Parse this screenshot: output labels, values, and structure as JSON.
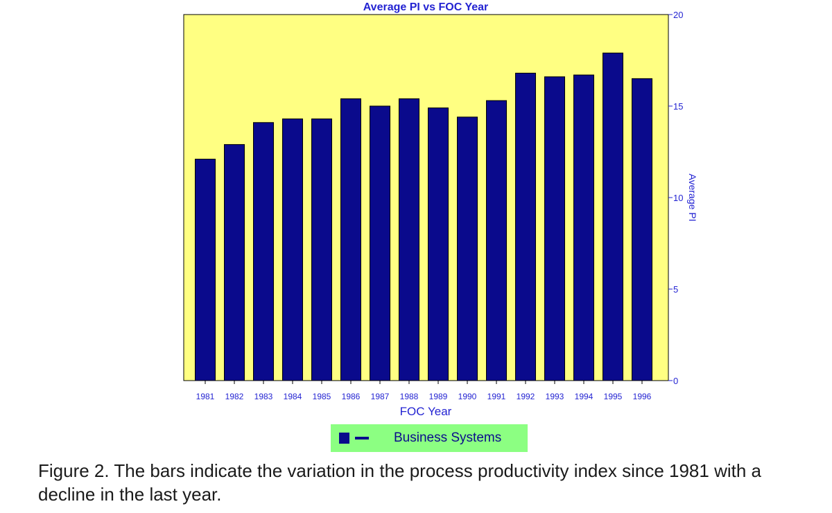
{
  "chart_data": {
    "type": "bar",
    "title": "Average PI vs FOC Year",
    "xlabel": "FOC Year",
    "ylabel": "Average PI",
    "categories": [
      "1981",
      "1982",
      "1983",
      "1984",
      "1985",
      "1986",
      "1987",
      "1988",
      "1989",
      "1990",
      "1991",
      "1992",
      "1993",
      "1994",
      "1995",
      "1996"
    ],
    "series": [
      {
        "name": "Business Systems",
        "values": [
          12.1,
          12.9,
          14.1,
          14.3,
          14.3,
          15.4,
          15.0,
          15.4,
          14.9,
          14.4,
          15.3,
          16.8,
          16.6,
          16.7,
          17.9,
          16.5
        ]
      }
    ],
    "ylim": [
      0,
      20
    ],
    "yticks": [
      0,
      5,
      10,
      15,
      20
    ],
    "y_axis_side": "right",
    "grid": false,
    "legend_position": "bottom",
    "colors": {
      "bar": "#0a0a8c",
      "plot_background": "#ffff82",
      "axis_text": "#2323d2",
      "legend_background": "#8cff82"
    }
  },
  "legend": {
    "label": "Business Systems"
  },
  "caption": "Figure 2. The bars indicate the variation in the process productivity index since 1981 with a decline in the last year."
}
